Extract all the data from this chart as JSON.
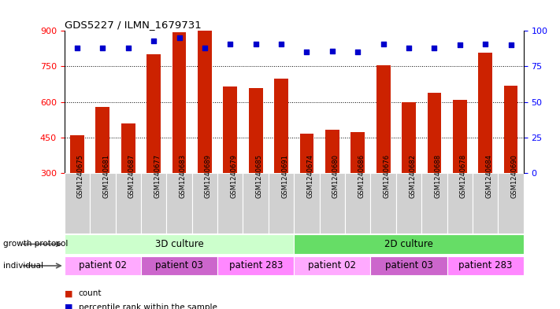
{
  "title": "GDS5227 / ILMN_1679731",
  "samples": [
    "GSM1240675",
    "GSM1240681",
    "GSM1240687",
    "GSM1240677",
    "GSM1240683",
    "GSM1240689",
    "GSM1240679",
    "GSM1240685",
    "GSM1240691",
    "GSM1240674",
    "GSM1240680",
    "GSM1240686",
    "GSM1240676",
    "GSM1240682",
    "GSM1240688",
    "GSM1240678",
    "GSM1240684",
    "GSM1240690"
  ],
  "counts": [
    460,
    578,
    510,
    800,
    895,
    900,
    665,
    660,
    700,
    465,
    483,
    473,
    755,
    600,
    640,
    610,
    808,
    668
  ],
  "percentile_ranks": [
    88,
    88,
    88,
    93,
    95,
    88,
    91,
    91,
    91,
    85,
    86,
    85,
    91,
    88,
    88,
    90,
    91,
    90
  ],
  "ymin": 300,
  "ymax": 900,
  "yticks": [
    300,
    450,
    600,
    750,
    900
  ],
  "right_yticks": [
    0,
    25,
    50,
    75,
    100
  ],
  "bar_color": "#cc2200",
  "dot_color": "#0000cc",
  "growth_protocol_groups": [
    {
      "name": "3D culture",
      "start": 0,
      "end": 9,
      "color": "#ccffcc"
    },
    {
      "name": "2D culture",
      "start": 9,
      "end": 18,
      "color": "#66dd66"
    }
  ],
  "individual_groups": [
    {
      "name": "patient 02",
      "start": 0,
      "end": 3,
      "color": "#ffaaff"
    },
    {
      "name": "patient 03",
      "start": 3,
      "end": 6,
      "color": "#cc66cc"
    },
    {
      "name": "patient 283",
      "start": 6,
      "end": 9,
      "color": "#ff88ff"
    },
    {
      "name": "patient 02",
      "start": 9,
      "end": 12,
      "color": "#ffaaff"
    },
    {
      "name": "patient 03",
      "start": 12,
      "end": 15,
      "color": "#cc66cc"
    },
    {
      "name": "patient 283",
      "start": 15,
      "end": 18,
      "color": "#ff88ff"
    }
  ],
  "legend_count_label": "count",
  "legend_pct_label": "percentile rank within the sample",
  "bar_width": 0.55,
  "tick_label_bg": "#d0d0d0"
}
